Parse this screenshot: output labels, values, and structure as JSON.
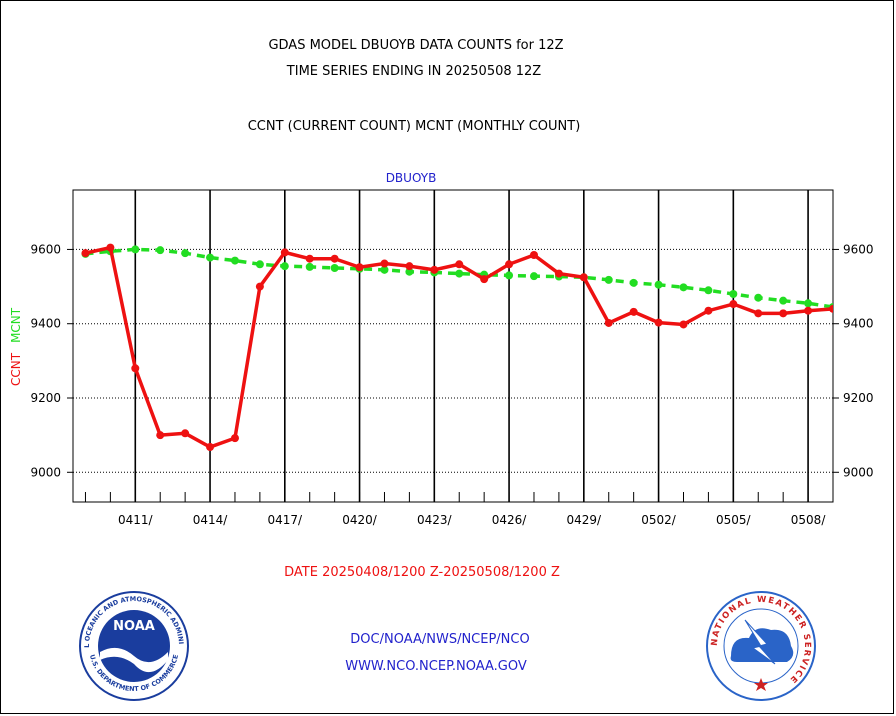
{
  "header": {
    "title_line1": "GDAS MODEL DBUOYB DATA COUNTS for 12Z",
    "title_line2": "TIME SERIES ENDING IN 20250508 12Z",
    "subtitle": "CCNT (CURRENT COUNT) MCNT (MONTHLY COUNT)"
  },
  "footer": {
    "date_range": "DATE 20250408/1200 Z-20250508/1200 Z",
    "org_path": "DOC/NOAA/NWS/NCEP/NCO",
    "website": "WWW.NCO.NCEP.NOAA.GOV",
    "noaa_logo_text": "NOAA",
    "noaa_ring_text": "NATIONAL OCEANIC AND ATMOSPHERIC ADMINISTRATION",
    "noaa_ring_bottom": "U.S. DEPARTMENT OF COMMERCE",
    "nws_ring_text": "NATIONAL WEATHER SERVICE"
  },
  "colors": {
    "ccnt": "#ee1111",
    "mcnt": "#22dd22",
    "plot_title": "#2222cc",
    "date_label": "#ee1111",
    "links": "#2222cc",
    "noaa_blue": "#1a3d9e",
    "nws_blue": "#2a64c8"
  },
  "chart_data": {
    "type": "line",
    "title": "DBUOYB",
    "ylabel_ccnt": "CCNT",
    "ylabel_mcnt": "MCNT",
    "ylim": [
      8920,
      9760
    ],
    "yticks": [
      9000,
      9200,
      9400,
      9600
    ],
    "xlim": [
      -0.5,
      30
    ],
    "xticks": [
      {
        "x": 2,
        "label": "0411/"
      },
      {
        "x": 5,
        "label": "0414/"
      },
      {
        "x": 8,
        "label": "0417/"
      },
      {
        "x": 11,
        "label": "0420/"
      },
      {
        "x": 14,
        "label": "0423/"
      },
      {
        "x": 17,
        "label": "0426/"
      },
      {
        "x": 20,
        "label": "0429/"
      },
      {
        "x": 23,
        "label": "0502/"
      },
      {
        "x": 26,
        "label": "0505/"
      },
      {
        "x": 29,
        "label": "0508/"
      }
    ],
    "grid": true,
    "series": [
      {
        "name": "CCNT",
        "values": [
          9590,
          9605,
          9280,
          9100,
          9105,
          9068,
          9092,
          9500,
          9592,
          9575,
          9575,
          9552,
          9562,
          9555,
          9545,
          9560,
          9520,
          9560,
          9585,
          9535,
          9525,
          9402,
          9432,
          9403,
          9398,
          9435,
          9453,
          9428,
          9428,
          9435,
          9440
        ]
      },
      {
        "name": "MCNT",
        "values": [
          9588,
          9595,
          9600,
          9598,
          9590,
          9578,
          9570,
          9560,
          9555,
          9553,
          9550,
          9548,
          9545,
          9540,
          9538,
          9535,
          9532,
          9530,
          9528,
          9527,
          9525,
          9518,
          9510,
          9505,
          9498,
          9490,
          9480,
          9470,
          9462,
          9455,
          9445
        ]
      }
    ]
  }
}
